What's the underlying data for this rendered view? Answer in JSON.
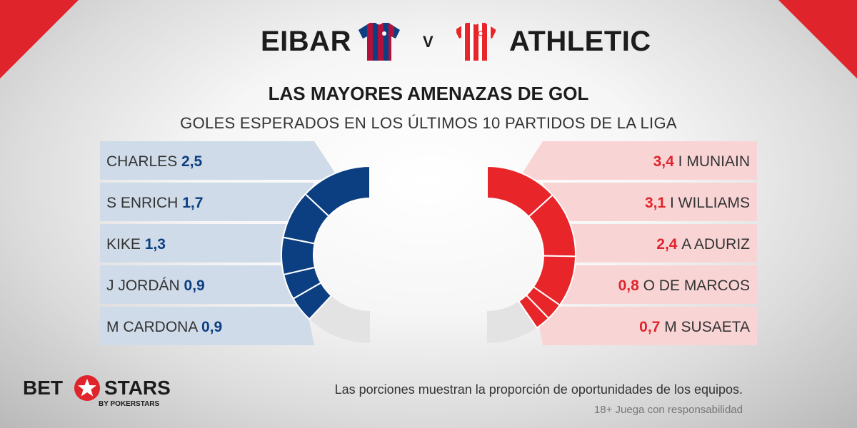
{
  "header": {
    "home_team": "EIBAR",
    "vs": "V",
    "away_team": "ATHLETIC",
    "title": "LAS MAYORES AMENAZAS DE GOL",
    "subtitle": "GOLES ESPERADOS EN LOS ÚLTIMOS 10 PARTIDOS DE LA LIGA"
  },
  "chart_data": [
    {
      "type": "pie",
      "variant": "donut-half",
      "team": "EIBAR",
      "side": "left",
      "title": "",
      "categories": [
        "CHARLES",
        "S ENRICH",
        "KIKE",
        "J JORDÁN",
        "M CARDONA"
      ],
      "values": [
        2.5,
        1.7,
        1.3,
        0.9,
        0.9
      ],
      "value_labels": [
        "2,5",
        "1,7",
        "1,3",
        "0,9",
        "0,9"
      ],
      "share_of_half": 0.76,
      "remainder_label": "",
      "colors": {
        "slice": "#0c3e82",
        "remainder": "#e3e3e3",
        "panel": "#cfdbe8",
        "value_text": "#0c3e82"
      }
    },
    {
      "type": "pie",
      "variant": "donut-half",
      "team": "ATHLETIC",
      "side": "right",
      "title": "",
      "categories": [
        "I MUNIAIN",
        "I WILLIAMS",
        "A ADURIZ",
        "O DE MARCOS",
        "M SUSAETA"
      ],
      "values": [
        3.4,
        3.1,
        2.4,
        0.8,
        0.7
      ],
      "value_labels": [
        "3,4",
        "3,1",
        "2,4",
        "0,8",
        "0,7"
      ],
      "share_of_half": 0.81,
      "remainder_label": "",
      "colors": {
        "slice": "#e8262a",
        "remainder": "#e3e3e3",
        "panel": "#f9d4d5",
        "value_text": "#e0242b"
      }
    }
  ],
  "footer": {
    "note": "Las porciones muestran la proporción de oportunidades de los equipos.",
    "disclaimer": "18+ Juega con responsabilidad",
    "logo_bet": "BET",
    "logo_stars": "STARS",
    "logo_by": "BY POKERSTARS"
  },
  "colors": {
    "accent_red": "#e0242b",
    "eibar_blue": "#0c3e82",
    "eibar_claret": "#b0123b",
    "athletic_red": "#e8262a",
    "text_dark": "#1c1c1c"
  },
  "icons": {
    "home_jersey": "eibar-jersey-icon",
    "away_jersey": "athletic-jersey-icon",
    "logo_star": "star-icon"
  }
}
